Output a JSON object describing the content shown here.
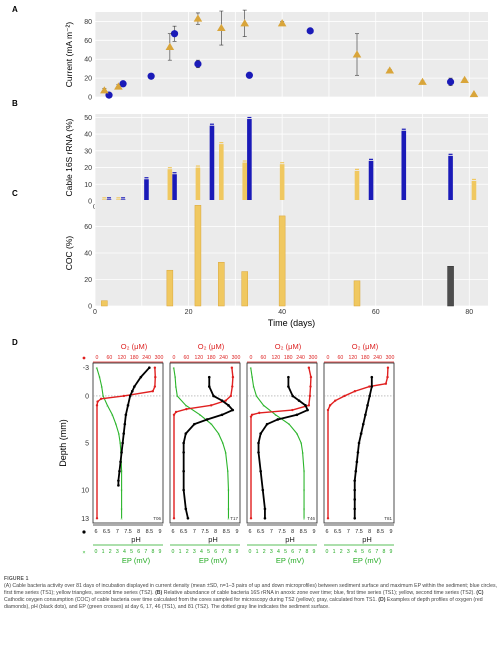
{
  "figure": {
    "label": "FIGURE 1",
    "caption": [
      {
        "bold": "",
        "text": "(A) Cable bacteria activity over 81 days of incubation displayed in current density (mean ±SD, n=1–3 pairs of up and down microprofiles) between sediment surface and maximum EP within the sediment; blue circles, first time series (TS1); yellow triangles, second time series (TS2). "
      },
      {
        "bold": "(B)",
        "text": " Relative abundance of cable bacteria 16S rRNA in anoxic zone over time; blue, first time series (TS1); yellow, second time series (TS2). "
      },
      {
        "bold": "(C)",
        "text": " Cathodic oxygen consumption (COC) of cable bacteria over time calculated from the cores sampled for microscopy during TS2 (yellow); gray, calculated from TS1. "
      },
      {
        "bold": "(D)",
        "text": " Examples of depth profiles of oxygen (red diamonds), pH (black dots), and EP (green crosses) at day 6, 17, 46 (TS1), and 81 (TS2). The dotted gray line indicates the sediment surface."
      }
    ]
  },
  "chart_data": [
    {
      "panel": "A",
      "type": "scatter",
      "ylabel": "Current (mA m⁻²)",
      "ylim": [
        0,
        90
      ],
      "yticks": [
        0,
        20,
        40,
        60,
        80
      ],
      "xlim": [
        0,
        84
      ],
      "grid": true,
      "series": [
        {
          "symbol": "circle",
          "color": "#1a1ab8",
          "points": [
            {
              "x": 3,
              "y": 2,
              "sd": 0
            },
            {
              "x": 6,
              "y": 14,
              "sd": 1
            },
            {
              "x": 12,
              "y": 22,
              "sd": 1
            },
            {
              "x": 17,
              "y": 67,
              "sd": 8
            },
            {
              "x": 22,
              "y": 35,
              "sd": 4
            },
            {
              "x": 33,
              "y": 23,
              "sd": 0
            },
            {
              "x": 46,
              "y": 70,
              "sd": 2
            },
            {
              "x": 76,
              "y": 16,
              "sd": 4
            }
          ]
        },
        {
          "symbol": "triangle",
          "color": "#d9a53a",
          "points": [
            {
              "x": 2,
              "y": 7,
              "sd": 2
            },
            {
              "x": 5,
              "y": 11,
              "sd": 2
            },
            {
              "x": 16,
              "y": 53,
              "sd": 14
            },
            {
              "x": 22,
              "y": 83,
              "sd": 6
            },
            {
              "x": 27,
              "y": 73,
              "sd": 18
            },
            {
              "x": 32,
              "y": 78,
              "sd": 14
            },
            {
              "x": 40,
              "y": 78,
              "sd": 2
            },
            {
              "x": 56,
              "y": 45,
              "sd": 22
            },
            {
              "x": 63,
              "y": 28,
              "sd": 1
            },
            {
              "x": 70,
              "y": 16,
              "sd": 1
            },
            {
              "x": 79,
              "y": 18,
              "sd": 1
            },
            {
              "x": 81,
              "y": 3,
              "sd": 0
            }
          ]
        }
      ]
    },
    {
      "panel": "B",
      "type": "bar",
      "ylabel": "Cable 16S rRNA (%)",
      "ylim": [
        0,
        52
      ],
      "yticks": [
        0,
        10,
        20,
        30,
        40,
        50
      ],
      "xlim": [
        0,
        84
      ],
      "xticks": [
        0,
        10,
        20,
        30,
        40,
        50,
        60,
        70,
        80
      ],
      "series": [
        {
          "color": "#1a1ab8",
          "points": [
            {
              "x": 3,
              "y": 1
            },
            {
              "x": 6,
              "y": 1
            },
            {
              "x": 11,
              "y": 13
            },
            {
              "x": 17,
              "y": 16
            },
            {
              "x": 25,
              "y": 45
            },
            {
              "x": 33,
              "y": 49
            },
            {
              "x": 59,
              "y": 24
            },
            {
              "x": 66,
              "y": 42
            },
            {
              "x": 76,
              "y": 27
            }
          ]
        },
        {
          "color": "#f0c860",
          "points": [
            {
              "x": 2,
              "y": 1
            },
            {
              "x": 5,
              "y": 1
            },
            {
              "x": 16,
              "y": 19
            },
            {
              "x": 22,
              "y": 20
            },
            {
              "x": 27,
              "y": 34
            },
            {
              "x": 32,
              "y": 23
            },
            {
              "x": 40,
              "y": 22
            },
            {
              "x": 56,
              "y": 18
            },
            {
              "x": 81,
              "y": 12
            }
          ]
        }
      ]
    },
    {
      "panel": "C",
      "type": "bar",
      "ylabel": "COC (%)",
      "xlabel": "Time (days)",
      "ylim": [
        0,
        80
      ],
      "yticks": [
        0,
        20,
        40,
        60
      ],
      "xlim": [
        0,
        84
      ],
      "xticks": [
        0,
        20,
        40,
        60,
        80
      ],
      "series": [
        {
          "color": "#f0c860",
          "points": [
            {
              "x": 2,
              "y": 4
            },
            {
              "x": 16,
              "y": 27
            },
            {
              "x": 22,
              "y": 76
            },
            {
              "x": 27,
              "y": 33
            },
            {
              "x": 32,
              "y": 26
            },
            {
              "x": 40,
              "y": 68
            },
            {
              "x": 56,
              "y": 19
            }
          ]
        },
        {
          "color": "#4d4d4d",
          "points": [
            {
              "x": 76,
              "y": 30
            }
          ]
        }
      ]
    },
    {
      "panel": "D",
      "type": "line",
      "ylabel": "Depth (mm)",
      "ylim": [
        -3.5,
        13.5
      ],
      "yticks": [
        -3,
        0,
        5,
        10,
        13
      ],
      "o2_axis": {
        "label": "O₂ (μM)",
        "range": [
          0,
          300
        ],
        "ticks": [
          0,
          60,
          120,
          180,
          240,
          300
        ]
      },
      "ph_axis": {
        "label": "pH",
        "range": [
          6,
          9
        ],
        "ticks": [
          6,
          6.5,
          7,
          7.5,
          8,
          8.5,
          9
        ]
      },
      "ep_axis": {
        "label": "EP (mV)",
        "range": [
          0,
          9
        ],
        "ticks": [
          0,
          1,
          2,
          3,
          4,
          5,
          6,
          7,
          8,
          9
        ]
      },
      "legend": {
        "o2": "O₂ (μM)",
        "ph": "pH",
        "ep": "EP (mV)"
      },
      "subpanels": [
        {
          "tag": "T06",
          "o2": [
            [
              -3,
              280
            ],
            [
              -2,
              282
            ],
            [
              -1,
              280
            ],
            [
              -0.5,
              270
            ],
            [
              0,
              130
            ],
            [
              0.3,
              20
            ],
            [
              0.6,
              3
            ],
            [
              1,
              0
            ],
            [
              13,
              0
            ]
          ],
          "ph": [
            [
              -3,
              8.5
            ],
            [
              -2,
              8.1
            ],
            [
              -1,
              7.8
            ],
            [
              -0.5,
              7.7
            ],
            [
              0,
              7.6
            ],
            [
              1,
              7.5
            ],
            [
              2,
              7.4
            ],
            [
              3,
              7.35
            ],
            [
              4,
              7.3
            ],
            [
              5,
              7.25
            ],
            [
              6,
              7.2
            ],
            [
              7,
              7.15
            ],
            [
              8,
              7.1
            ],
            [
              9,
              7.05
            ],
            [
              9.5,
              7.05
            ]
          ],
          "ep": [
            [
              -3,
              0.1
            ],
            [
              -2,
              0.5
            ],
            [
              -1,
              0.8
            ],
            [
              0,
              1.0
            ],
            [
              1,
              1.6
            ],
            [
              2,
              2.3
            ],
            [
              3,
              2.8
            ],
            [
              4,
              3.2
            ],
            [
              5,
              3.4
            ],
            [
              6,
              3.5
            ],
            [
              8,
              3.6
            ],
            [
              10,
              3.6
            ],
            [
              12,
              3.6
            ],
            [
              13,
              3.6
            ]
          ]
        },
        {
          "tag": "T17",
          "o2": [
            [
              -3,
              280
            ],
            [
              -2,
              285
            ],
            [
              -1,
              282
            ],
            [
              0,
              275
            ],
            [
              0.5,
              250
            ],
            [
              1,
              180
            ],
            [
              1.4,
              60
            ],
            [
              1.7,
              10
            ],
            [
              2,
              0
            ],
            [
              13,
              0
            ]
          ],
          "ph": [
            [
              -2,
              7.7
            ],
            [
              -1,
              7.7
            ],
            [
              0,
              7.9
            ],
            [
              0.5,
              8.3
            ],
            [
              1,
              8.6
            ],
            [
              1.5,
              8.8
            ],
            [
              2,
              8.3
            ],
            [
              2.5,
              7.6
            ],
            [
              3,
              7.0
            ],
            [
              4,
              6.6
            ],
            [
              5,
              6.5
            ],
            [
              6,
              6.5
            ],
            [
              8,
              6.5
            ],
            [
              10,
              6.5
            ],
            [
              12,
              6.6
            ],
            [
              13,
              6.7
            ]
          ],
          "ep": [
            [
              -3,
              0.1
            ],
            [
              -2,
              0.3
            ],
            [
              -1,
              0.4
            ],
            [
              0,
              0.6
            ],
            [
              1,
              1.8
            ],
            [
              2,
              3.8
            ],
            [
              3,
              5.4
            ],
            [
              4,
              6.4
            ],
            [
              5,
              7.0
            ],
            [
              6,
              7.4
            ],
            [
              8,
              7.7
            ],
            [
              10,
              7.8
            ],
            [
              12,
              7.8
            ],
            [
              13,
              7.8
            ]
          ]
        },
        {
          "tag": "T46",
          "o2": [
            [
              -3,
              280
            ],
            [
              -2,
              290
            ],
            [
              -1,
              288
            ],
            [
              0,
              285
            ],
            [
              1,
              280
            ],
            [
              1.5,
              200
            ],
            [
              1.8,
              40
            ],
            [
              2,
              5
            ],
            [
              2.2,
              0
            ],
            [
              13,
              0
            ]
          ],
          "ph": [
            [
              -2,
              7.8
            ],
            [
              -1,
              7.8
            ],
            [
              0,
              8.0
            ],
            [
              0.5,
              8.3
            ],
            [
              1,
              8.6
            ],
            [
              1.5,
              8.7
            ],
            [
              2,
              8.2
            ],
            [
              2.5,
              7.3
            ],
            [
              3,
              6.8
            ],
            [
              4,
              6.5
            ],
            [
              5,
              6.4
            ],
            [
              6,
              6.4
            ],
            [
              8,
              6.5
            ],
            [
              10,
              6.6
            ],
            [
              12,
              6.7
            ],
            [
              13,
              6.7
            ]
          ],
          "ep": [
            [
              -3,
              0.1
            ],
            [
              -2,
              0.3
            ],
            [
              -1,
              0.5
            ],
            [
              0,
              0.9
            ],
            [
              1,
              1.9
            ],
            [
              2,
              3.6
            ],
            [
              3,
              5.5
            ],
            [
              4,
              6.6
            ],
            [
              5,
              7.2
            ],
            [
              6,
              7.4
            ],
            [
              8,
              7.6
            ],
            [
              10,
              7.6
            ],
            [
              12,
              7.6
            ],
            [
              13,
              7.6
            ]
          ]
        },
        {
          "tag": "T81",
          "o2": [
            [
              -3,
              290
            ],
            [
              -2,
              288
            ],
            [
              -1.3,
              280
            ],
            [
              -1,
              200
            ],
            [
              -0.5,
              130
            ],
            [
              0,
              80
            ],
            [
              0.5,
              35
            ],
            [
              1,
              10
            ],
            [
              1.5,
              0
            ],
            [
              13,
              0
            ]
          ],
          "ph": [
            [
              -2,
              8.1
            ],
            [
              -1,
              8.1
            ],
            [
              0,
              8.0
            ],
            [
              1,
              7.9
            ],
            [
              2,
              7.8
            ],
            [
              3,
              7.7
            ],
            [
              4,
              7.6
            ],
            [
              5,
              7.5
            ],
            [
              6,
              7.45
            ],
            [
              7,
              7.4
            ],
            [
              8,
              7.35
            ],
            [
              9,
              7.3
            ],
            [
              10,
              7.3
            ],
            [
              11,
              7.3
            ],
            [
              12,
              7.3
            ],
            [
              13,
              7.3
            ]
          ],
          "ep": []
        }
      ]
    }
  ]
}
